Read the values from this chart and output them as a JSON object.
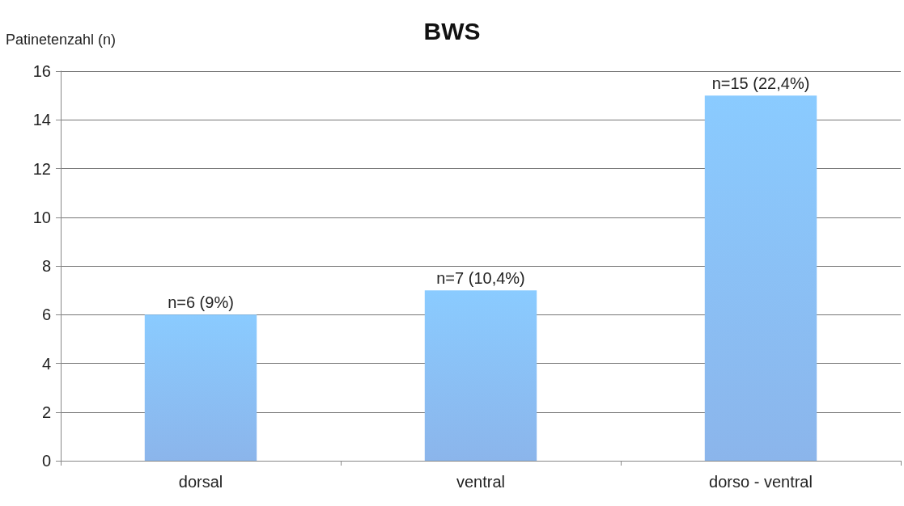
{
  "chart_data": {
    "type": "bar",
    "title": "BWS",
    "ylabel": "Patinetenzahl (n)",
    "categories": [
      "dorsal",
      "ventral",
      "dorso - ventral"
    ],
    "values": [
      6,
      7,
      15
    ],
    "color": "#6fa3e6",
    "value_labels": [
      "n=6 (9%)",
      "n=7 (10,4%)",
      "n=15 (22,4%)"
    ],
    "ylim": [
      0,
      16
    ],
    "yticks": [
      0,
      2,
      4,
      6,
      8,
      10,
      12,
      14,
      16
    ],
    "grid": "y"
  }
}
